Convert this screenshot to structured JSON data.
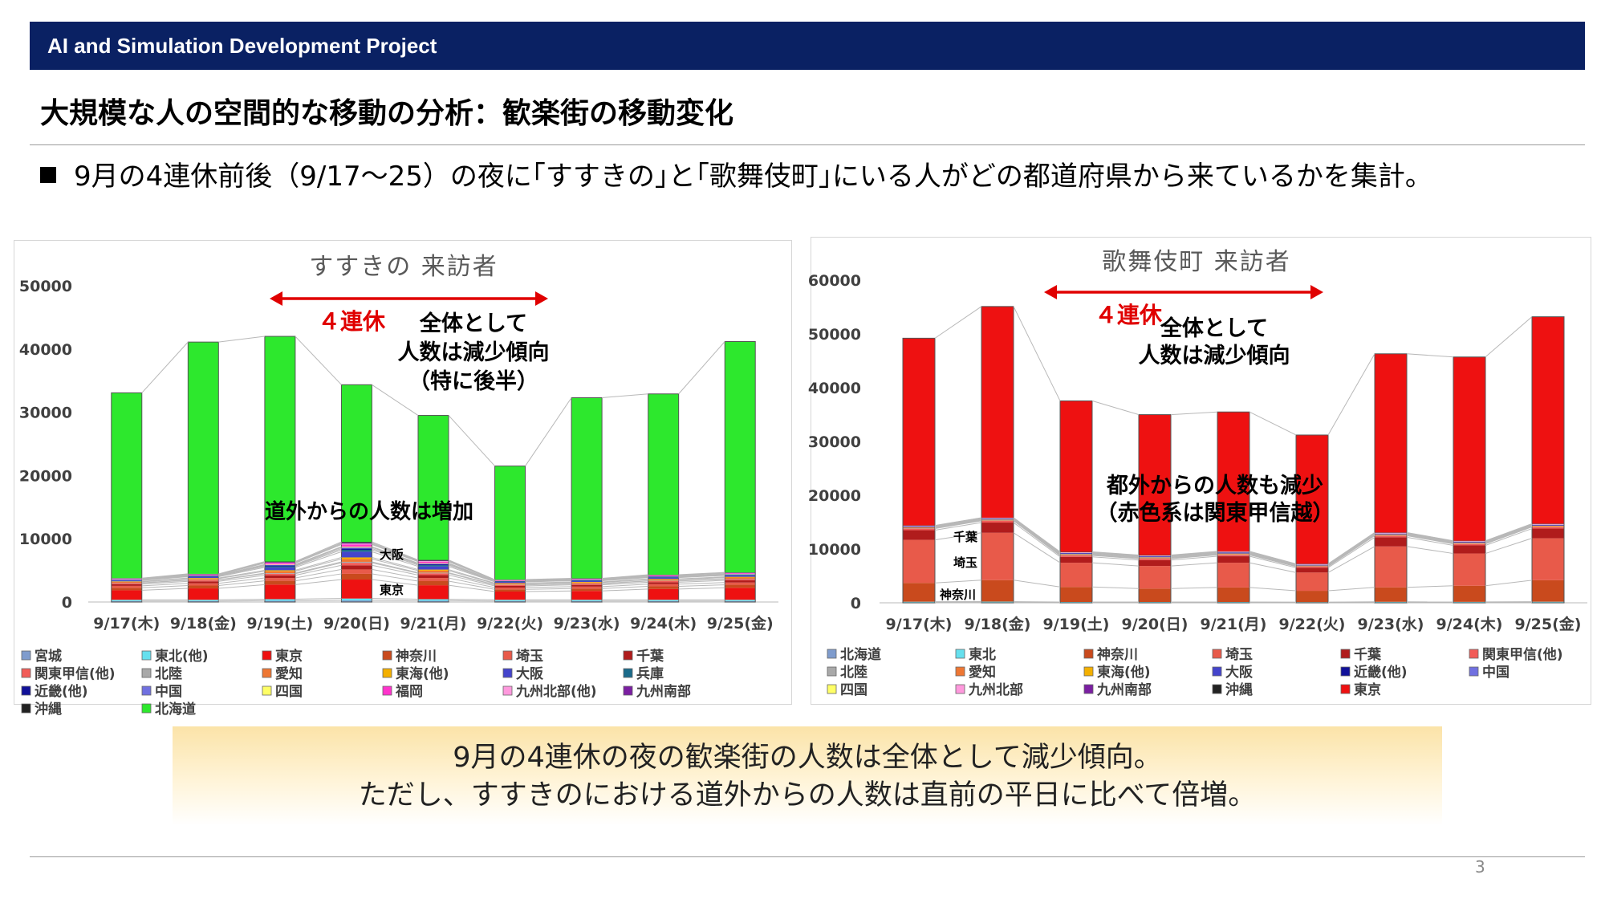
{
  "header": {
    "project": "AI and Simulation Development Project"
  },
  "slide": {
    "title": "大規模な人の空間的な移動の分析：歓楽街の移動変化",
    "bullet": "9月の4連休前後（9/17～25）の夜に｢すすきの｣と｢歌舞伎町｣にいる人がどの都道府県から来ているかを集計。",
    "summary_line1": "9月の4連休の夜の歓楽街の人数は全体として減少傾向。",
    "summary_line2": "ただし、すすきのにおける道外からの人数は直前の平日に比べて倍増。",
    "page_number": "3"
  },
  "chart_data": [
    {
      "type": "bar",
      "stacked": true,
      "title": "すすきの 来訪者",
      "categories": [
        "9/17(木)",
        "9/18(金)",
        "9/19(土)",
        "9/20(日)",
        "9/21(月)",
        "9/22(火)",
        "9/23(水)",
        "9/24(木)",
        "9/25(金)"
      ],
      "ylim": [
        0,
        50000
      ],
      "yticks": [
        0,
        10000,
        20000,
        30000,
        40000,
        50000
      ],
      "grid": false,
      "legend_position": "bottom",
      "series": [
        {
          "name": "宮城",
          "color": "#7f9ccd",
          "values": [
            150,
            150,
            200,
            250,
            200,
            150,
            150,
            150,
            150
          ]
        },
        {
          "name": "東北(他)",
          "color": "#66e0ee",
          "values": [
            200,
            200,
            250,
            300,
            250,
            200,
            200,
            200,
            200
          ]
        },
        {
          "name": "東京",
          "color": "#ee1111",
          "values": [
            1500,
            1800,
            2300,
            3000,
            2200,
            1300,
            1400,
            1700,
            1900
          ]
        },
        {
          "name": "神奈川",
          "color": "#c94a1d",
          "values": [
            400,
            450,
            600,
            900,
            650,
            350,
            380,
            430,
            470
          ]
        },
        {
          "name": "埼玉",
          "color": "#e85a4a",
          "values": [
            300,
            350,
            450,
            700,
            500,
            280,
            300,
            340,
            360
          ]
        },
        {
          "name": "千葉",
          "color": "#b01c1c",
          "values": [
            280,
            320,
            420,
            650,
            460,
            260,
            280,
            310,
            340
          ]
        },
        {
          "name": "関東甲信(他)",
          "color": "#f25c58",
          "values": [
            150,
            180,
            250,
            400,
            280,
            150,
            160,
            180,
            200
          ]
        },
        {
          "name": "北陸",
          "color": "#a9a9a9",
          "values": [
            50,
            60,
            100,
            150,
            100,
            50,
            50,
            60,
            60
          ]
        },
        {
          "name": "愛知",
          "color": "#ee7733",
          "values": [
            150,
            180,
            300,
            450,
            320,
            160,
            160,
            180,
            190
          ]
        },
        {
          "name": "東海(他)",
          "color": "#f4b000",
          "values": [
            80,
            100,
            150,
            250,
            170,
            90,
            90,
            100,
            110
          ]
        },
        {
          "name": "大阪",
          "color": "#4444cc",
          "values": [
            150,
            200,
            450,
            900,
            500,
            180,
            190,
            210,
            220
          ]
        },
        {
          "name": "兵庫",
          "color": "#1a6b8a",
          "values": [
            60,
            80,
            180,
            300,
            200,
            70,
            70,
            80,
            90
          ]
        },
        {
          "name": "近畿(他)",
          "color": "#111199",
          "values": [
            50,
            60,
            120,
            200,
            130,
            50,
            50,
            60,
            60
          ]
        },
        {
          "name": "中国",
          "color": "#7070e0",
          "values": [
            40,
            50,
            100,
            170,
            110,
            40,
            40,
            50,
            50
          ]
        },
        {
          "name": "四国",
          "color": "#ffff66",
          "values": [
            30,
            40,
            70,
            120,
            80,
            30,
            30,
            40,
            40
          ]
        },
        {
          "name": "福岡",
          "color": "#ff33cc",
          "values": [
            80,
            100,
            200,
            350,
            220,
            90,
            90,
            100,
            110
          ]
        },
        {
          "name": "九州北部(他)",
          "color": "#ff99dd",
          "values": [
            30,
            40,
            80,
            130,
            90,
            30,
            30,
            40,
            40
          ]
        },
        {
          "name": "九州南部",
          "color": "#7b1fa2",
          "values": [
            30,
            40,
            80,
            130,
            90,
            30,
            30,
            40,
            40
          ]
        },
        {
          "name": "沖縄",
          "color": "#222222",
          "values": [
            40,
            50,
            100,
            150,
            100,
            40,
            40,
            50,
            50
          ]
        },
        {
          "name": "北海道",
          "color": "#2de82d",
          "values": [
            29300,
            36650,
            35600,
            24850,
            22850,
            17950,
            28560,
            28580,
            36500
          ]
        }
      ],
      "annotations": {
        "holiday": "４連休",
        "overall": [
          "全体として",
          "人数は減少傾向",
          "（特に後半）"
        ],
        "outside": "道外からの人数は増加",
        "label_osaka": "大阪",
        "label_tokyo": "東京"
      }
    },
    {
      "type": "bar",
      "stacked": true,
      "title": "歌舞伎町 来訪者",
      "categories": [
        "9/17(木)",
        "9/18(金)",
        "9/19(土)",
        "9/20(日)",
        "9/21(月)",
        "9/22(火)",
        "9/23(水)",
        "9/24(木)",
        "9/25(金)"
      ],
      "ylim": [
        0,
        60000
      ],
      "yticks": [
        0,
        10000,
        20000,
        30000,
        40000,
        50000,
        60000
      ],
      "grid": false,
      "legend_position": "bottom",
      "series": [
        {
          "name": "北海道",
          "color": "#7f9ccd",
          "values": [
            80,
            90,
            60,
            60,
            60,
            50,
            70,
            70,
            80
          ]
        },
        {
          "name": "東北",
          "color": "#66e0ee",
          "values": [
            120,
            130,
            90,
            90,
            90,
            80,
            110,
            100,
            120
          ]
        },
        {
          "name": "神奈川",
          "color": "#c94a1d",
          "values": [
            3500,
            4000,
            2800,
            2500,
            2700,
            2100,
            2700,
            3000,
            4000
          ]
        },
        {
          "name": "埼玉",
          "color": "#e85a4a",
          "values": [
            8000,
            8800,
            4500,
            4200,
            4600,
            3400,
            7600,
            6000,
            7800
          ]
        },
        {
          "name": "千葉",
          "color": "#b01c1c",
          "values": [
            1800,
            1900,
            1100,
            1100,
            1200,
            900,
            1700,
            1500,
            1800
          ]
        },
        {
          "name": "関東甲信(他)",
          "color": "#f25c58",
          "values": [
            300,
            320,
            250,
            250,
            250,
            200,
            300,
            280,
            300
          ]
        },
        {
          "name": "北陸",
          "color": "#a9a9a9",
          "values": [
            60,
            60,
            80,
            80,
            80,
            60,
            60,
            60,
            60
          ]
        },
        {
          "name": "愛知",
          "color": "#ee7733",
          "values": [
            100,
            100,
            110,
            110,
            110,
            80,
            100,
            100,
            110
          ]
        },
        {
          "name": "東海(他)",
          "color": "#f4b000",
          "values": [
            60,
            60,
            70,
            70,
            70,
            50,
            60,
            60,
            60
          ]
        },
        {
          "name": "大阪",
          "color": "#4444cc",
          "values": [
            100,
            100,
            110,
            110,
            110,
            80,
            100,
            100,
            110
          ]
        },
        {
          "name": "近畿(他)",
          "color": "#111199",
          "values": [
            60,
            60,
            70,
            70,
            70,
            50,
            60,
            60,
            60
          ]
        },
        {
          "name": "中国",
          "color": "#7070e0",
          "values": [
            40,
            40,
            50,
            50,
            50,
            40,
            40,
            40,
            40
          ]
        },
        {
          "name": "四国",
          "color": "#ffff66",
          "values": [
            30,
            30,
            30,
            30,
            30,
            30,
            30,
            30,
            30
          ]
        },
        {
          "name": "九州北部",
          "color": "#ff99dd",
          "values": [
            60,
            60,
            70,
            70,
            70,
            50,
            60,
            60,
            60
          ]
        },
        {
          "name": "九州南部",
          "color": "#7b1fa2",
          "values": [
            30,
            30,
            30,
            30,
            30,
            30,
            30,
            30,
            30
          ]
        },
        {
          "name": "沖縄",
          "color": "#222222",
          "values": [
            50,
            50,
            60,
            60,
            60,
            50,
            50,
            50,
            50
          ]
        },
        {
          "name": "東京",
          "color": "#ee1111",
          "values": [
            34810,
            39270,
            28070,
            26110,
            25910,
            23950,
            33230,
            34170,
            38480
          ]
        }
      ],
      "annotations": {
        "holiday": "４連休",
        "overall": [
          "全体として",
          "人数は減少傾向"
        ],
        "outside": [
          "都外からの人数も減少",
          "（赤色系は関東甲信越）"
        ],
        "label_chiba": "千葉",
        "label_saitama": "埼玉",
        "label_kanagawa": "神奈川"
      }
    }
  ]
}
